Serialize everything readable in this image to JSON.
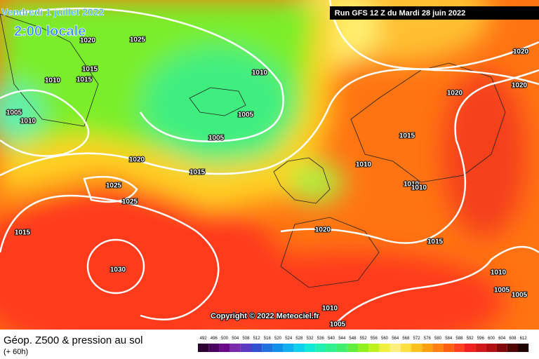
{
  "header": {
    "date": "Vendredi 1 juillet 2022",
    "time": "2:00 locale",
    "run": "Run GFS 12 Z du Mardi 28 juin 2022"
  },
  "copyright": "Copyright © 2022 Meteociel.fr",
  "footer": {
    "title": "Géop. Z500 & pression au sol",
    "lead": "(+ 60h)"
  },
  "isobars": {
    "labels": [
      1020,
      1025,
      1015,
      1010,
      1015,
      1010,
      1005,
      1010,
      1005,
      1005,
      1020,
      1015,
      1025,
      1025,
      1015,
      1030,
      1020,
      1020,
      1020,
      1015,
      1010,
      1010,
      1010,
      1020,
      1015,
      1010,
      1005,
      1005,
      1010,
      1005
    ]
  },
  "legend": {
    "values": [
      492,
      496,
      500,
      504,
      508,
      512,
      516,
      520,
      524,
      528,
      532,
      536,
      540,
      544,
      548,
      552,
      556,
      560,
      564,
      568,
      572,
      576,
      580,
      584,
      588,
      592,
      596,
      600,
      604,
      608,
      612
    ],
    "colors": [
      "#2a0030",
      "#4a0060",
      "#6a0a8a",
      "#7a2aaa",
      "#5a3ac0",
      "#3050d0",
      "#2070e0",
      "#1090e8",
      "#10b0f0",
      "#10d0f0",
      "#10e8d8",
      "#20f0b0",
      "#30f090",
      "#40ee70",
      "#60ee40",
      "#90f020",
      "#c0f020",
      "#f0f040",
      "#fff080",
      "#ffe040",
      "#ffc020",
      "#ffa010",
      "#ff8010",
      "#ff6010",
      "#ff4020",
      "#f02020",
      "#d01818",
      "#b01010",
      "#800808",
      "#500404",
      "#200000"
    ]
  }
}
